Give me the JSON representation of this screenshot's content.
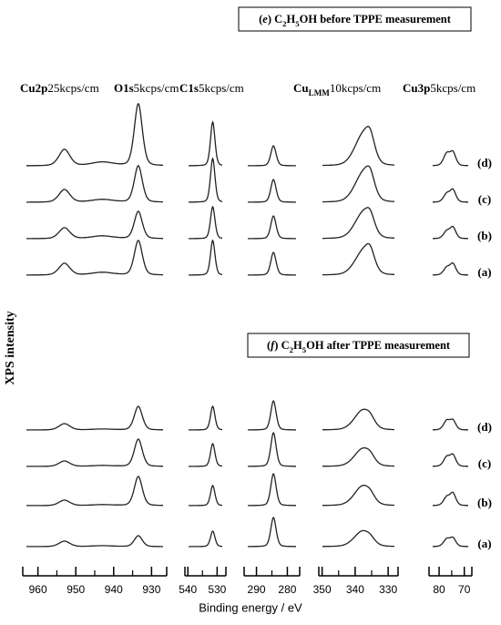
{
  "chart_data": {
    "type": "xps-stack",
    "x_label": "Binding energy / eV",
    "y_label": "XPS intensity",
    "headers": [
      [
        {
          "text": "Cu2p",
          "style": "bold"
        },
        {
          "text": "25kcps/cm",
          "style": "normal"
        }
      ],
      [
        {
          "text": "O1s",
          "style": "bold"
        },
        {
          "text": "5kcps/cm",
          "style": "normal"
        }
      ],
      [
        {
          "text": "C1s",
          "style": "bold"
        },
        {
          "text": "5kcps/cm",
          "style": "normal"
        }
      ],
      [
        {
          "text": "Cu",
          "style": "bold"
        },
        {
          "text": "LMM",
          "style": "sub"
        },
        {
          "text": "10kcps/cm",
          "style": "normal"
        }
      ],
      [
        {
          "text": "Cu3p",
          "style": "bold"
        },
        {
          "text": "5kcps/cm",
          "style": "normal"
        }
      ]
    ],
    "regions": [
      {
        "xlim": [
          964,
          926
        ],
        "xticks": [
          960,
          950,
          940,
          930
        ],
        "minor_ticks": [
          955,
          945,
          935
        ],
        "peaks": [
          {
            "x": 953,
            "width": 1.5
          },
          {
            "x": 943,
            "width": 3
          },
          {
            "x": 933.5,
            "width": 1.1
          }
        ]
      },
      {
        "xlim": [
          541,
          527
        ],
        "xticks": [
          540,
          530
        ],
        "minor_ticks": [
          535
        ],
        "peaks": [
          {
            "x": 531.5,
            "width": 0.8
          }
        ]
      },
      {
        "xlim": [
          294,
          276
        ],
        "xticks": [
          290,
          280
        ],
        "minor_ticks": [
          285
        ],
        "peaks": [
          {
            "x": 284.5,
            "width": 0.9
          }
        ]
      },
      {
        "xlim": [
          351,
          327
        ],
        "xticks": [
          350,
          340,
          330
        ],
        "minor_ticks": [
          345,
          335
        ],
        "peaks": [
          {
            "x": 338,
            "width": 2.5
          },
          {
            "x": 335.5,
            "width": 1.5
          }
        ]
      },
      {
        "xlim": [
          84,
          67
        ],
        "xticks": [
          80,
          70
        ],
        "minor_ticks": [
          75
        ],
        "peaks": [
          {
            "x": 77,
            "width": 1.3
          },
          {
            "x": 74.5,
            "width": 1.2
          }
        ]
      }
    ],
    "panels": [
      {
        "title": [
          {
            "text": "(",
            "style": "bold"
          },
          {
            "text": "e",
            "style": "italic"
          },
          {
            "text": ") C",
            "style": "bold"
          },
          {
            "text": "2",
            "style": "sub"
          },
          {
            "text": "H",
            "style": "bold"
          },
          {
            "text": "5",
            "style": "sub"
          },
          {
            "text": "OH before TPPE measurement",
            "style": "bold"
          }
        ],
        "samples": [
          {
            "label": "(d)",
            "heights": [
              [
                18,
                4,
                68
              ],
              [
                48
              ],
              [
                22
              ],
              [
                30,
                24
              ],
              [
                13,
                14
              ]
            ]
          },
          {
            "label": "(c)",
            "heights": [
              [
                14,
                3,
                40
              ],
              [
                48
              ],
              [
                25
              ],
              [
                28,
                22
              ],
              [
                9,
                13
              ]
            ]
          },
          {
            "label": "(b)",
            "heights": [
              [
                12,
                3,
                30
              ],
              [
                35
              ],
              [
                25
              ],
              [
                25,
                18
              ],
              [
                8,
                12
              ]
            ]
          },
          {
            "label": "(a)",
            "heights": [
              [
                13,
                3,
                38
              ],
              [
                38
              ],
              [
                25
              ],
              [
                23,
                20
              ],
              [
                8,
                12
              ]
            ]
          }
        ]
      },
      {
        "title": [
          {
            "text": "(",
            "style": "bold"
          },
          {
            "text": "f",
            "style": "italic"
          },
          {
            "text": ") C",
            "style": "bold"
          },
          {
            "text": "2",
            "style": "sub"
          },
          {
            "text": "H",
            "style": "bold"
          },
          {
            "text": "5",
            "style": "sub"
          },
          {
            "text": "OH after TPPE measurement",
            "style": "bold"
          }
        ],
        "samples": [
          {
            "label": "(d)",
            "heights": [
              [
                7,
                1,
                26
              ],
              [
                26
              ],
              [
                32
              ],
              [
                20,
                8
              ],
              [
                10,
                10
              ]
            ]
          },
          {
            "label": "(c)",
            "heights": [
              [
                6,
                1,
                30
              ],
              [
                25
              ],
              [
                37
              ],
              [
                18,
                7
              ],
              [
                10,
                12
              ]
            ]
          },
          {
            "label": "(b)",
            "heights": [
              [
                6,
                1,
                32
              ],
              [
                22
              ],
              [
                35
              ],
              [
                20,
                7
              ],
              [
                9,
                13
              ]
            ]
          },
          {
            "label": "(a)",
            "heights": [
              [
                6,
                1,
                12
              ],
              [
                17
              ],
              [
                32
              ],
              [
                16,
                5
              ],
              [
                8,
                9
              ]
            ]
          }
        ]
      }
    ]
  }
}
